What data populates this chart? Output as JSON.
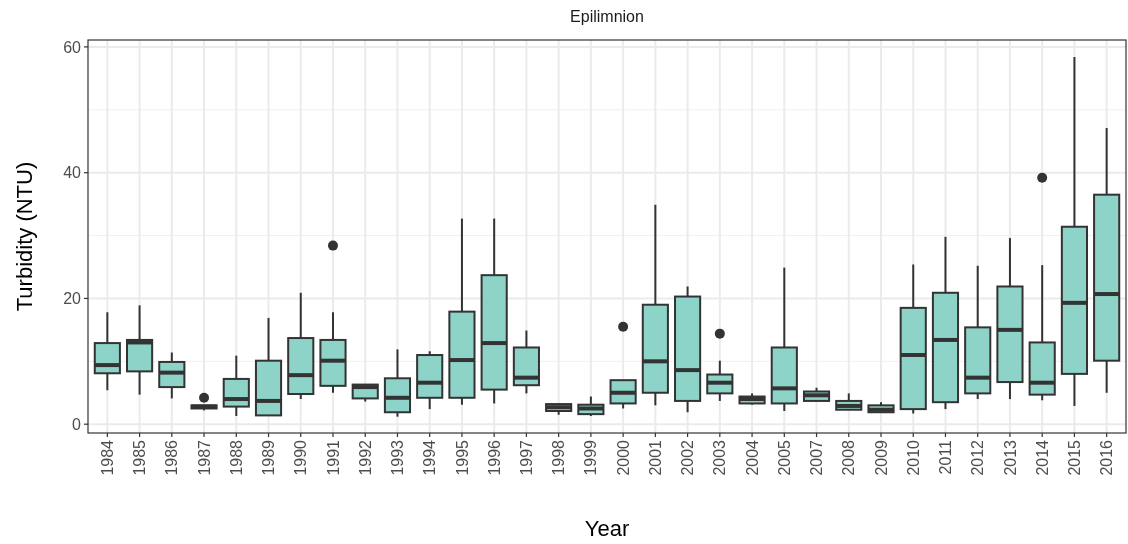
{
  "chart_data": {
    "type": "box",
    "title": "Epilimnion",
    "xlabel": "Year",
    "ylabel": "Turbidity (NTU)",
    "categories": [
      "1984",
      "1985",
      "1986",
      "1987",
      "1988",
      "1989",
      "1990",
      "1991",
      "1992",
      "1993",
      "1994",
      "1995",
      "1996",
      "1997",
      "1998",
      "1999",
      "2000",
      "2001",
      "2002",
      "2003",
      "2004",
      "2005",
      "2007",
      "2008",
      "2009",
      "2010",
      "2011",
      "2012",
      "2013",
      "2014",
      "2015",
      "2016"
    ],
    "color": "#8dd3c7",
    "boxes": [
      {
        "low": 5.4,
        "q1": 8.1,
        "median": 9.4,
        "q3": 12.9,
        "high": 17.8
      },
      {
        "low": 4.7,
        "q1": 8.4,
        "median": 13.0,
        "q3": 13.4,
        "high": 18.9
      },
      {
        "low": 4.1,
        "q1": 5.9,
        "median": 8.2,
        "q3": 9.9,
        "high": 11.4
      },
      {
        "low": 2.2,
        "q1": 2.5,
        "median": 2.8,
        "q3": 3.0,
        "high": 3.0,
        "outliers": [
          4.2
        ]
      },
      {
        "low": 1.3,
        "q1": 2.8,
        "median": 4.0,
        "q3": 7.2,
        "high": 10.9
      },
      {
        "low": 1.3,
        "q1": 1.4,
        "median": 3.7,
        "q3": 10.1,
        "high": 16.9
      },
      {
        "low": 4.0,
        "q1": 4.8,
        "median": 7.8,
        "q3": 13.7,
        "high": 20.9
      },
      {
        "low": 5.0,
        "q1": 6.1,
        "median": 10.1,
        "q3": 13.4,
        "high": 17.8,
        "outliers": [
          28.4
        ]
      },
      {
        "low": 3.6,
        "q1": 4.1,
        "median": 5.9,
        "q3": 6.3,
        "high": 6.3
      },
      {
        "low": 1.2,
        "q1": 1.9,
        "median": 4.2,
        "q3": 7.3,
        "high": 11.9
      },
      {
        "low": 2.4,
        "q1": 4.2,
        "median": 6.6,
        "q3": 11.0,
        "high": 11.6
      },
      {
        "low": 3.1,
        "q1": 4.2,
        "median": 10.2,
        "q3": 17.9,
        "high": 32.7
      },
      {
        "low": 3.3,
        "q1": 5.5,
        "median": 12.9,
        "q3": 23.7,
        "high": 32.7
      },
      {
        "low": 4.9,
        "q1": 6.2,
        "median": 7.4,
        "q3": 12.2,
        "high": 14.9
      },
      {
        "low": 1.5,
        "q1": 2.1,
        "median": 2.7,
        "q3": 3.2,
        "high": 3.3
      },
      {
        "low": 1.3,
        "q1": 1.6,
        "median": 2.5,
        "q3": 3.1,
        "high": 4.4
      },
      {
        "low": 2.5,
        "q1": 3.3,
        "median": 5.0,
        "q3": 7.0,
        "high": 7.0,
        "outliers": [
          15.5
        ]
      },
      {
        "low": 3.0,
        "q1": 5.0,
        "median": 10.0,
        "q3": 19.0,
        "high": 34.9
      },
      {
        "low": 1.9,
        "q1": 3.7,
        "median": 8.6,
        "q3": 20.3,
        "high": 21.9
      },
      {
        "low": 3.7,
        "q1": 4.9,
        "median": 6.6,
        "q3": 7.9,
        "high": 10.1,
        "outliers": [
          14.4
        ]
      },
      {
        "low": 3.1,
        "q1": 3.3,
        "median": 4.0,
        "q3": 4.4,
        "high": 4.9
      },
      {
        "low": 2.1,
        "q1": 3.3,
        "median": 5.7,
        "q3": 12.2,
        "high": 24.9
      },
      {
        "low": 3.7,
        "q1": 3.7,
        "median": 4.6,
        "q3": 5.2,
        "high": 5.8
      },
      {
        "low": 2.3,
        "q1": 2.3,
        "median": 2.9,
        "q3": 3.7,
        "high": 4.9
      },
      {
        "low": 1.8,
        "q1": 1.9,
        "median": 2.3,
        "q3": 3.0,
        "high": 3.5
      },
      {
        "low": 1.7,
        "q1": 2.4,
        "median": 11.0,
        "q3": 18.5,
        "high": 25.4
      },
      {
        "low": 2.4,
        "q1": 3.5,
        "median": 13.4,
        "q3": 20.9,
        "high": 29.8
      },
      {
        "low": 4.0,
        "q1": 4.9,
        "median": 7.4,
        "q3": 15.4,
        "high": 25.2
      },
      {
        "low": 4.0,
        "q1": 6.7,
        "median": 15.0,
        "q3": 21.9,
        "high": 29.6
      },
      {
        "low": 3.8,
        "q1": 4.7,
        "median": 6.6,
        "q3": 13.0,
        "high": 25.3,
        "outliers": [
          39.2
        ]
      },
      {
        "low": 2.9,
        "q1": 8.0,
        "median": 19.3,
        "q3": 31.4,
        "high": 58.4
      },
      {
        "low": 5.0,
        "q1": 10.1,
        "median": 20.7,
        "q3": 36.5,
        "high": 47.1
      }
    ],
    "ylim": [
      -1.4,
      61.1
    ],
    "yticks": [
      0,
      20,
      40,
      60
    ],
    "grid": true
  }
}
